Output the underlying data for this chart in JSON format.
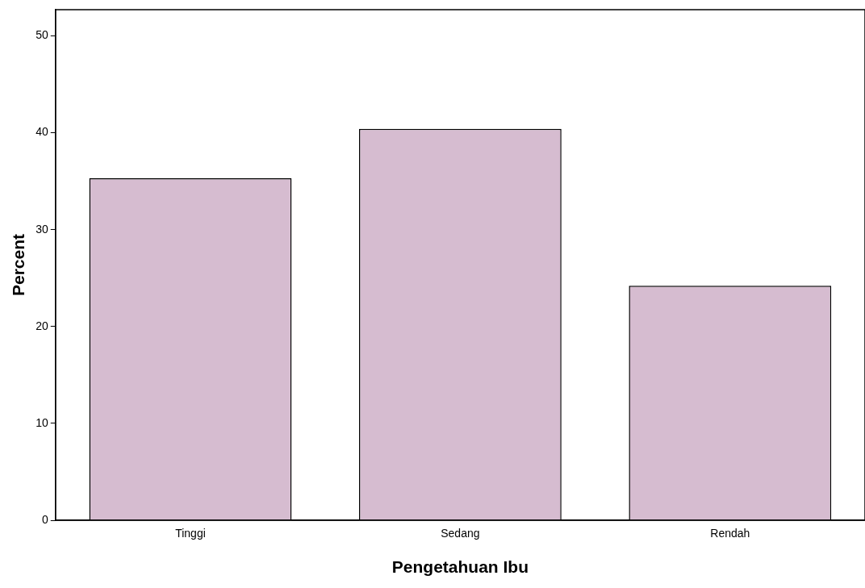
{
  "chart_data": {
    "type": "bar",
    "xlabel": "Pengetahuan Ibu",
    "ylabel": "Percent",
    "categories": [
      "Tinggi",
      "Sedang",
      "Rendah"
    ],
    "values": [
      35.3,
      40.4,
      24.2
    ],
    "color": "#d6bcd0",
    "ylim": [
      0,
      52.7
    ],
    "yticks": [
      0,
      10,
      20,
      30,
      40,
      50
    ],
    "grid": false
  }
}
